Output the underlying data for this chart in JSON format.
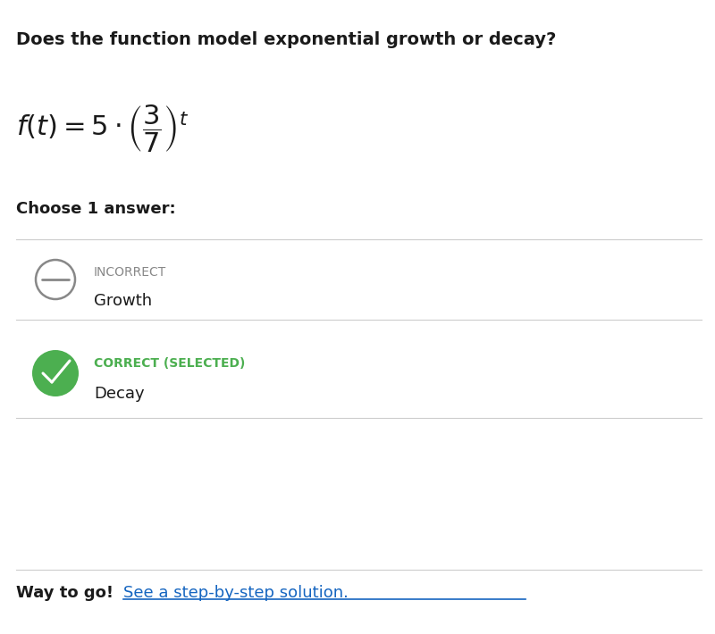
{
  "title": "Does the function model exponential growth or decay?",
  "choose_label": "Choose 1 answer:",
  "option_a_status": "INCORRECT",
  "option_a_label": "Growth",
  "option_b_status": "CORRECT (SELECTED)",
  "option_b_label": "Decay",
  "footer_bold": "Way to go!",
  "footer_link": "See a step-by-step solution.",
  "bg_color": "#ffffff",
  "title_color": "#1a1a1a",
  "incorrect_color": "#888888",
  "correct_color": "#4CAF50",
  "link_color": "#1565C0",
  "answer_text_color": "#1a1a1a",
  "divider_color": "#cccccc",
  "circle_border_color": "#888888",
  "green_circle_color": "#4CAF50"
}
